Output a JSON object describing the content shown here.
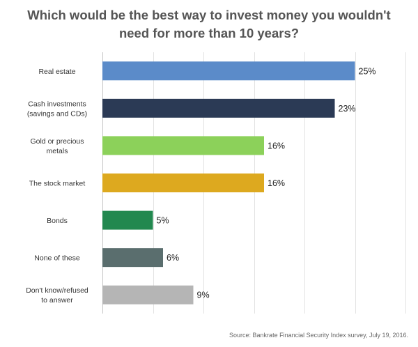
{
  "chart_data": {
    "type": "bar",
    "orientation": "horizontal",
    "title": "Which would be the best way to invest money you wouldn't need for more than 10 years?",
    "title_lines": [
      "Which would be the best way to invest money you wouldn't",
      "need for more than 10 years?"
    ],
    "categories": [
      "Real estate",
      "Cash investments (savings and CDs)",
      "Gold or precious metals",
      "The stock market",
      "Bonds",
      "None of these",
      "Don't know/refused to answer"
    ],
    "category_lines": [
      [
        "Real estate"
      ],
      [
        "Cash investments",
        "(savings and CDs)"
      ],
      [
        "Gold or precious",
        "metals"
      ],
      [
        "The stock market"
      ],
      [
        "Bonds"
      ],
      [
        "None of these"
      ],
      [
        "Don't know/refused",
        "to answer"
      ]
    ],
    "values": [
      25,
      23,
      16,
      16,
      5,
      6,
      9
    ],
    "value_labels": [
      "25%",
      "23%",
      "16%",
      "16%",
      "5%",
      "6%",
      "9%"
    ],
    "colors": [
      "#5B8BC9",
      "#2B3A55",
      "#8CD15A",
      "#DDA91F",
      "#22884F",
      "#5A6E6E",
      "#B5B5B5"
    ],
    "xlim": [
      0,
      30
    ],
    "grid": true,
    "source": "Source: Bankrate Financial Security Index survey, July 19, 2016."
  }
}
